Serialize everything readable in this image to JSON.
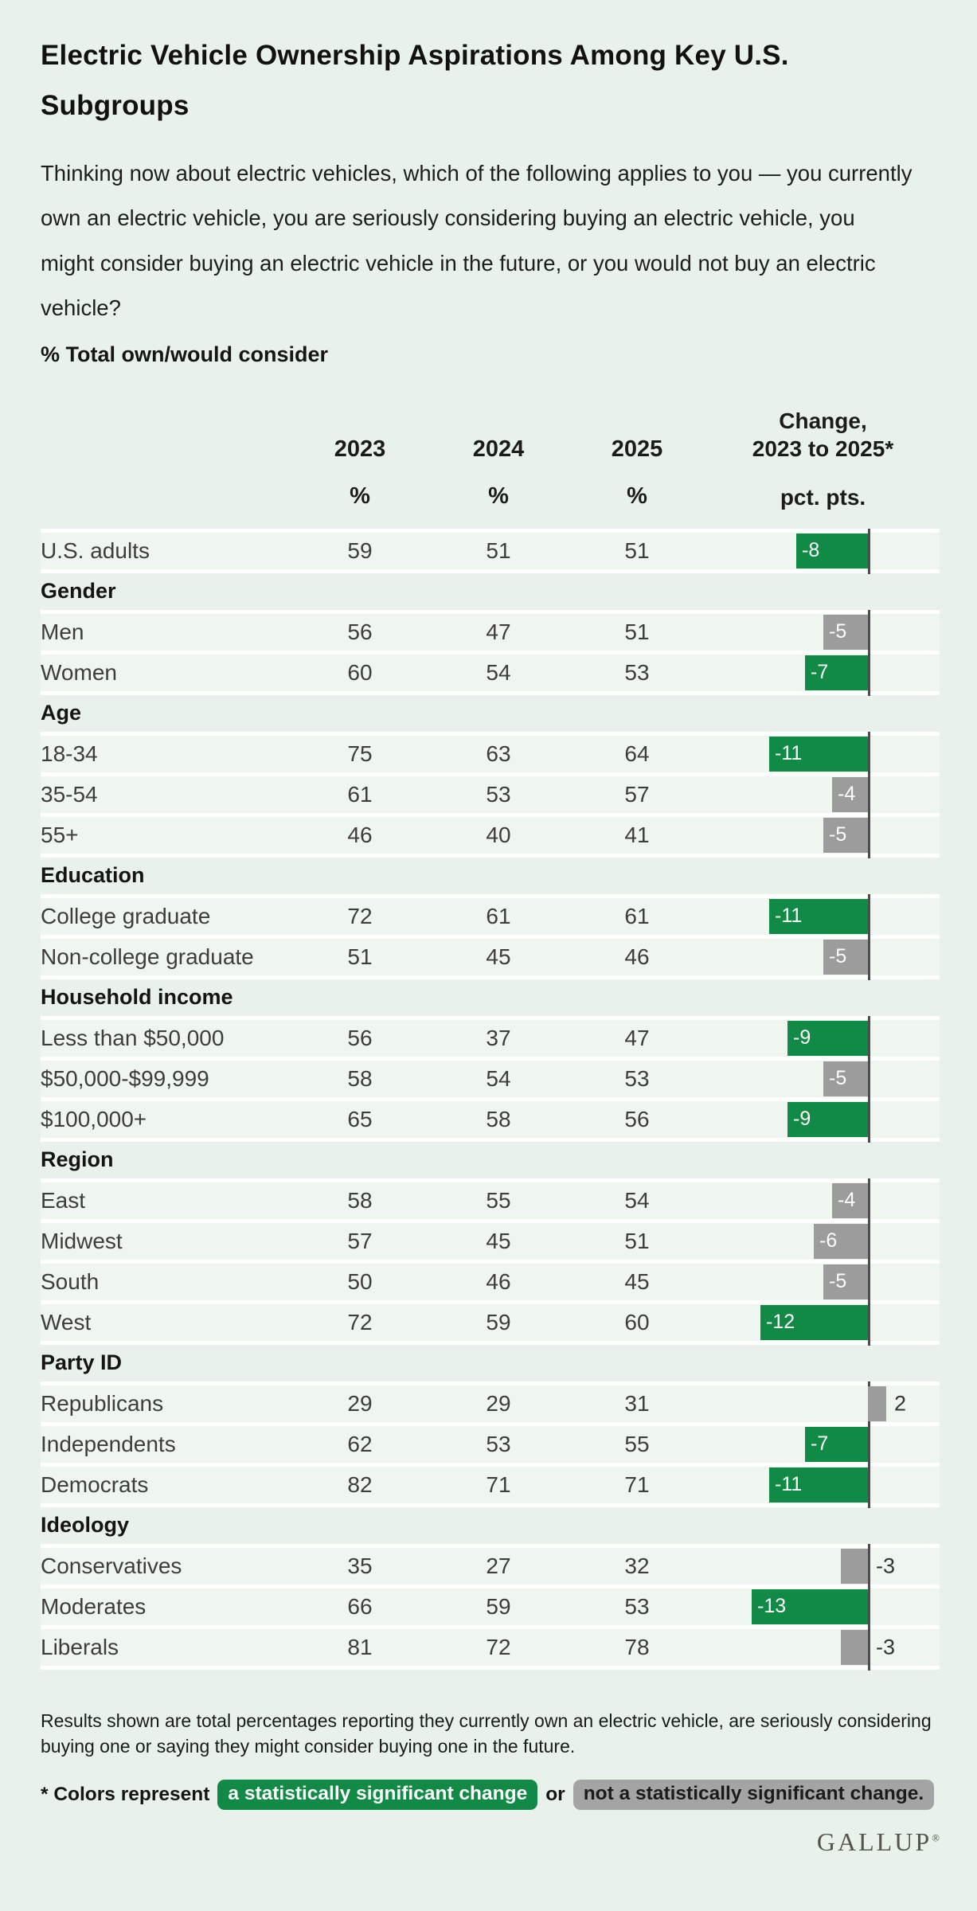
{
  "header": {
    "title": "Electric Vehicle Ownership Aspirations Among Key U.S. Subgroups",
    "question": "Thinking now about electric vehicles, which of the following applies to you — you currently own an electric vehicle, you are seriously considering buying an electric vehicle, you might consider buying an electric vehicle in the future, or you would not buy an electric vehicle?",
    "metric_label": "% Total own/would consider"
  },
  "colors": {
    "significant": "#108a45",
    "not_significant": "#9c9c9c",
    "legend_not_significant": "#a4a4a4",
    "page_bg": "#e9f2ea",
    "row_bg": "#eff6ef"
  },
  "chart_data": {
    "type": "table",
    "title": "Electric Vehicle Ownership Aspirations Among Key U.S. Subgroups",
    "subtitle": "% Total own/would consider",
    "columns": {
      "year1": "2023",
      "year2": "2024",
      "year3": "2025",
      "change_line1": "Change,",
      "change_line2": "2023 to 2025*",
      "pct1": "%",
      "pct2": "%",
      "pct3": "%",
      "pct_pts": "pct. pts."
    },
    "bar_note": "negative changes drawn as bars extending left of the zero axis; positive to the right; green = statistically significant, gray = not significant",
    "rows": [
      {
        "type": "data",
        "label": "U.S. adults",
        "v2023": 59,
        "v2024": 51,
        "v2025": 51,
        "change": -8,
        "significant": true
      },
      {
        "type": "section",
        "label": "Gender"
      },
      {
        "type": "data",
        "label": "Men",
        "v2023": 56,
        "v2024": 47,
        "v2025": 51,
        "change": -5,
        "significant": false
      },
      {
        "type": "data",
        "label": "Women",
        "v2023": 60,
        "v2024": 54,
        "v2025": 53,
        "change": -7,
        "significant": true
      },
      {
        "type": "section",
        "label": "Age"
      },
      {
        "type": "data",
        "label": "18-34",
        "v2023": 75,
        "v2024": 63,
        "v2025": 64,
        "change": -11,
        "significant": true
      },
      {
        "type": "data",
        "label": "35-54",
        "v2023": 61,
        "v2024": 53,
        "v2025": 57,
        "change": -4,
        "significant": false
      },
      {
        "type": "data",
        "label": "55+",
        "v2023": 46,
        "v2024": 40,
        "v2025": 41,
        "change": -5,
        "significant": false
      },
      {
        "type": "section",
        "label": "Education"
      },
      {
        "type": "data",
        "label": "College graduate",
        "v2023": 72,
        "v2024": 61,
        "v2025": 61,
        "change": -11,
        "significant": true
      },
      {
        "type": "data",
        "label": "Non-college graduate",
        "v2023": 51,
        "v2024": 45,
        "v2025": 46,
        "change": -5,
        "significant": false
      },
      {
        "type": "section",
        "label": "Household income"
      },
      {
        "type": "data",
        "label": "Less than $50,000",
        "v2023": 56,
        "v2024": 37,
        "v2025": 47,
        "change": -9,
        "significant": true
      },
      {
        "type": "data",
        "label": "$50,000-$99,999",
        "v2023": 58,
        "v2024": 54,
        "v2025": 53,
        "change": -5,
        "significant": false
      },
      {
        "type": "data",
        "label": "$100,000+",
        "v2023": 65,
        "v2024": 58,
        "v2025": 56,
        "change": -9,
        "significant": true
      },
      {
        "type": "section",
        "label": "Region"
      },
      {
        "type": "data",
        "label": "East",
        "v2023": 58,
        "v2024": 55,
        "v2025": 54,
        "change": -4,
        "significant": false
      },
      {
        "type": "data",
        "label": "Midwest",
        "v2023": 57,
        "v2024": 45,
        "v2025": 51,
        "change": -6,
        "significant": false
      },
      {
        "type": "data",
        "label": "South",
        "v2023": 50,
        "v2024": 46,
        "v2025": 45,
        "change": -5,
        "significant": false
      },
      {
        "type": "data",
        "label": "West",
        "v2023": 72,
        "v2024": 59,
        "v2025": 60,
        "change": -12,
        "significant": true
      },
      {
        "type": "section",
        "label": "Party ID"
      },
      {
        "type": "data",
        "label": "Republicans",
        "v2023": 29,
        "v2024": 29,
        "v2025": 31,
        "change": 2,
        "significant": false
      },
      {
        "type": "data",
        "label": "Independents",
        "v2023": 62,
        "v2024": 53,
        "v2025": 55,
        "change": -7,
        "significant": true
      },
      {
        "type": "data",
        "label": "Democrats",
        "v2023": 82,
        "v2024": 71,
        "v2025": 71,
        "change": -11,
        "significant": true
      },
      {
        "type": "section",
        "label": "Ideology"
      },
      {
        "type": "data",
        "label": "Conservatives",
        "v2023": 35,
        "v2024": 27,
        "v2025": 32,
        "change": -3,
        "significant": false
      },
      {
        "type": "data",
        "label": "Moderates",
        "v2023": 66,
        "v2024": 59,
        "v2025": 53,
        "change": -13,
        "significant": true
      },
      {
        "type": "data",
        "label": "Liberals",
        "v2023": 81,
        "v2024": 72,
        "v2025": 78,
        "change": -3,
        "significant": false
      }
    ]
  },
  "footer": {
    "note": "Results shown are total percentages reporting they currently own an electric vehicle, are seriously considering buying one or saying they might consider buying one in the future.",
    "legend_prefix": "* Colors represent",
    "legend_significant": "a statistically significant change",
    "legend_or": "or",
    "legend_not_significant": "not a statistically significant change.",
    "logo_text": "GALLUP",
    "logo_mark": "®"
  }
}
